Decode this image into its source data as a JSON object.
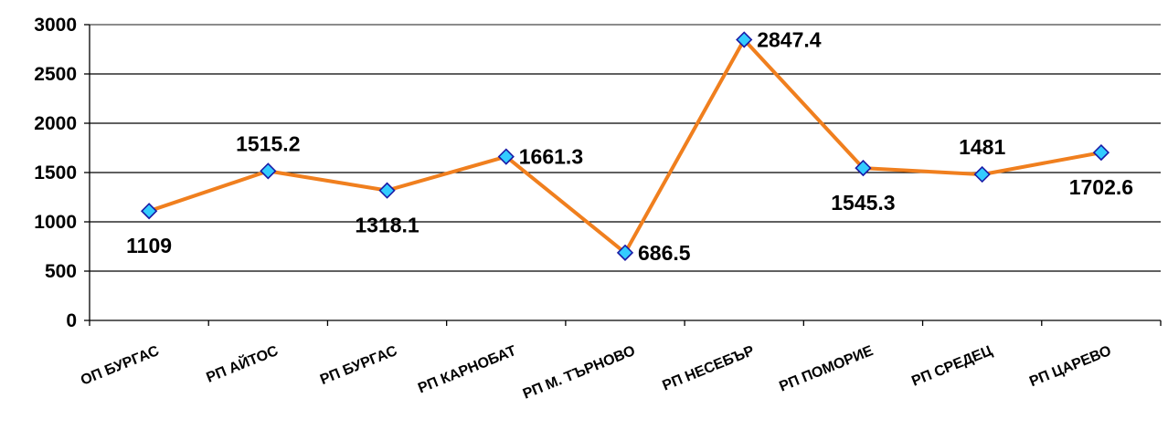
{
  "chart_data": {
    "type": "line",
    "categories": [
      "ОП БУРГАС",
      "РП АЙТОС",
      "РП БУРГАС",
      "РП КАРНОБАТ",
      "РП М. ТЪРНОВО",
      "РП НЕСЕБЪР",
      "РП ПОМОРИЕ",
      "РП СРЕДЕЦ",
      "РП ЦАРЕВО"
    ],
    "series": [
      {
        "values": [
          1109,
          1515.2,
          1318.1,
          1661.3,
          686.5,
          2847.4,
          1545.3,
          1481,
          1702.6
        ],
        "labels": [
          "1109",
          "1515.2",
          "1318.1",
          "1661.3",
          "686.5",
          "2847.4",
          "1545.3",
          "1481",
          "1702.6"
        ],
        "label_positions": [
          "below",
          "above",
          "below",
          "right",
          "right",
          "right",
          "below",
          "above",
          "below"
        ],
        "line_color": "#f07f1e",
        "marker_color": "#33ccff",
        "marker_border": "#1a1aa6"
      }
    ],
    "yticks": [
      "0",
      "500",
      "1000",
      "1500",
      "2000",
      "2500",
      "3000"
    ],
    "ylim": [
      0,
      3000
    ],
    "grid": true,
    "legend": "none"
  }
}
